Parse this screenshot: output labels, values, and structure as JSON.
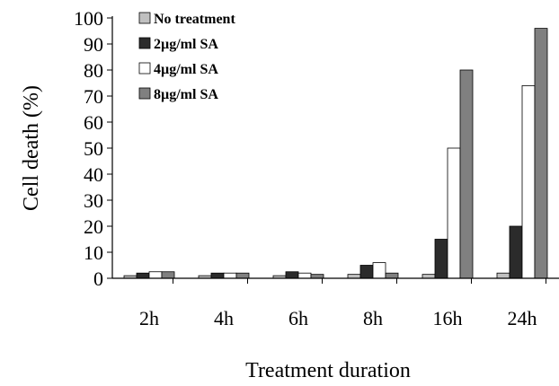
{
  "chart_data": {
    "type": "bar",
    "categories": [
      "2h",
      "4h",
      "6h",
      "8h",
      "16h",
      "24h"
    ],
    "series": [
      {
        "name": "No treatment",
        "values": [
          1,
          1,
          1,
          1.5,
          1.5,
          2
        ],
        "color": "#c0c0c0"
      },
      {
        "name": "2µg/ml SA",
        "values": [
          2,
          2,
          2.5,
          5,
          15,
          20
        ],
        "color": "#2b2b2b"
      },
      {
        "name": "4µg/ml SA",
        "values": [
          2.5,
          2,
          2,
          6,
          50,
          74
        ],
        "color": "#ffffff"
      },
      {
        "name": "8µg/ml SA",
        "values": [
          2.5,
          2,
          1.5,
          2,
          80,
          96
        ],
        "color": "#808080"
      }
    ],
    "xlabel": "Treatment duration",
    "ylabel": "Cell death (%)",
    "ylim": [
      0,
      100
    ],
    "yticks": [
      0,
      10,
      20,
      30,
      40,
      50,
      60,
      70,
      80,
      90,
      100
    ],
    "grid": false,
    "legend_position": "top-left"
  }
}
